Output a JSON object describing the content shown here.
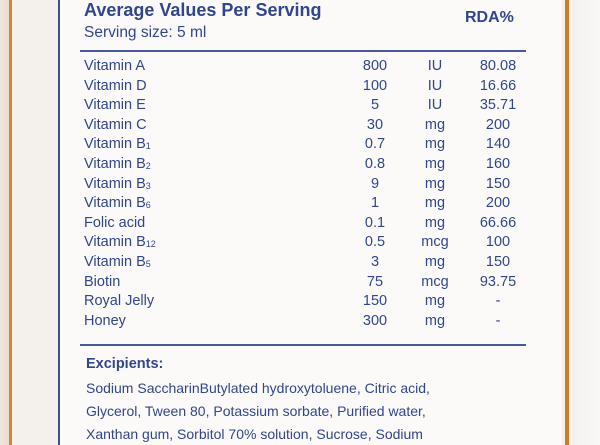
{
  "header": {
    "title": "Average Values Per Serving",
    "serving": "Serving size: 5 ml",
    "rda_label": "RDA%"
  },
  "rows": [
    {
      "name": "Vitamin A",
      "sub": "",
      "amount": "800",
      "unit": "IU",
      "rda": "80.08"
    },
    {
      "name": "Vitamin D",
      "sub": "",
      "amount": "100",
      "unit": "IU",
      "rda": "16.66"
    },
    {
      "name": "Vitamin E",
      "sub": "",
      "amount": "5",
      "unit": "IU",
      "rda": "35.71"
    },
    {
      "name": "Vitamin C",
      "sub": "",
      "amount": "30",
      "unit": "mg",
      "rda": "200"
    },
    {
      "name": "Vitamin B",
      "sub": "1",
      "amount": "0.7",
      "unit": "mg",
      "rda": "140"
    },
    {
      "name": "Vitamin B",
      "sub": "2",
      "amount": "0.8",
      "unit": "mg",
      "rda": "160"
    },
    {
      "name": "Vitamin B",
      "sub": "3",
      "amount": "9",
      "unit": "mg",
      "rda": "150"
    },
    {
      "name": "Vitamin B",
      "sub": "6",
      "amount": "1",
      "unit": "mg",
      "rda": "200"
    },
    {
      "name": "Folic acid",
      "sub": "",
      "amount": "0.1",
      "unit": "mg",
      "rda": "66.66"
    },
    {
      "name": "Vitamin B",
      "sub": "12",
      "amount": "0.5",
      "unit": "mcg",
      "rda": "100"
    },
    {
      "name": "Vitamin B",
      "sub": "5",
      "amount": "3",
      "unit": "mg",
      "rda": "150"
    },
    {
      "name": "Biotin",
      "sub": "",
      "amount": "75",
      "unit": "mcg",
      "rda": "93.75"
    },
    {
      "name": "Royal Jelly",
      "sub": "",
      "amount": "150",
      "unit": "mg",
      "rda": "-"
    },
    {
      "name": "Honey",
      "sub": "",
      "amount": "300",
      "unit": "mg",
      "rda": "-"
    }
  ],
  "excipients": {
    "title": "Excipients:",
    "lines": [
      "Sodium SaccharinButylated hydroxytoluene, Citric acid,",
      "Glycerol, Tween 80, Potassium sorbate, Purified water,",
      "Xanthan gum, Sorbitol 70% solution, Sucrose, Sodium"
    ]
  }
}
